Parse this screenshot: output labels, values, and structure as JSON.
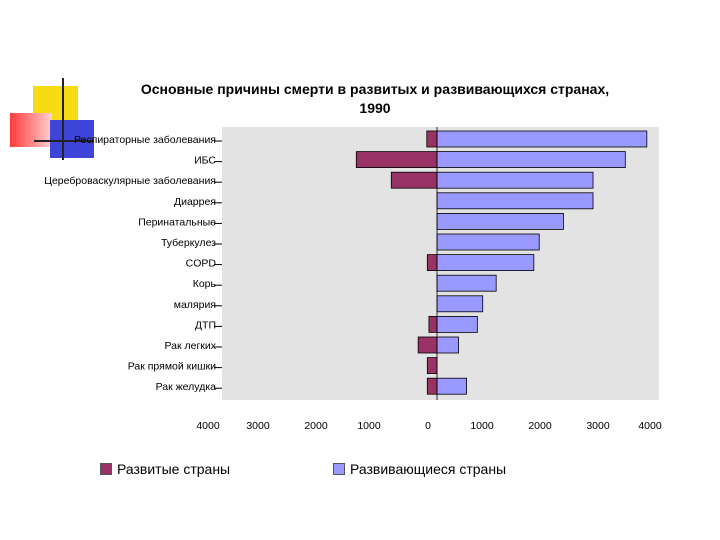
{
  "chart_data": {
    "type": "bar",
    "orientation": "horizontal",
    "diverging": true,
    "title": "Основные причины смерти в развитых и развивающихся странах, 1990",
    "title_lines": [
      "Основные причины смерти в развитых и развивающихся странах,",
      "1990"
    ],
    "categories": [
      "Респираторные заболевания",
      "ИБС",
      "Цереброваскулярные заболевания",
      "Диаррея",
      "Перинатальные",
      "Туберкулез",
      "COPD",
      "Корь",
      "малярия",
      "ДТП",
      "Рак легких",
      "Рак прямой кишки",
      "Рак желудка"
    ],
    "series": [
      {
        "name": "Развитые страны",
        "color": "#993366",
        "values": [
          190,
          1500,
          850,
          0,
          0,
          0,
          180,
          0,
          0,
          150,
          350,
          180,
          180
        ]
      },
      {
        "name": "Развивающиеся страны",
        "color": "#9999ff",
        "values": [
          3900,
          3500,
          2900,
          2900,
          2350,
          1900,
          1800,
          1100,
          850,
          750,
          400,
          0,
          550
        ]
      }
    ],
    "x_ticks": [
      "4000",
      "3000",
      "2000",
      "1000",
      "0",
      "1000",
      "2000",
      "3000",
      "4000"
    ],
    "xlim": [
      -4000,
      4000
    ],
    "grid": false,
    "plot_background": "#e3e3e3",
    "legend_position": "bottom"
  },
  "legend": {
    "developed_label": "Развитые страны",
    "developing_label": "Развивающиеся страны"
  }
}
